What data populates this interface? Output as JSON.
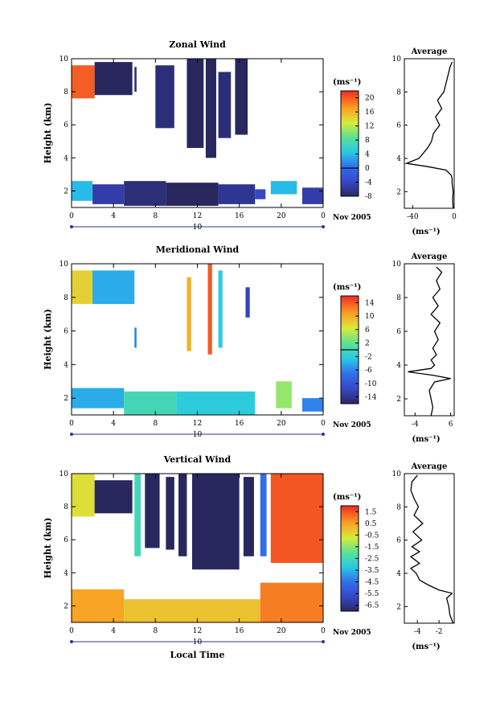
{
  "page": {
    "background": "#ffffff"
  },
  "chart_data": [
    {
      "type": "heatmap",
      "title": "Zonal Wind",
      "ylabel": "Height (km)",
      "xlabel": "",
      "xlim": [
        0,
        24
      ],
      "ylim": [
        1,
        10
      ],
      "x_ticks": [
        "0",
        "4",
        "8",
        "12",
        "16",
        "20",
        "0"
      ],
      "y_ticks": [
        "2",
        "4",
        "6",
        "8",
        "10"
      ],
      "date_marker": "10",
      "date_label": "Nov 2005",
      "colorbar": {
        "title": "(ms⁻¹)",
        "min": -8,
        "max": 22,
        "ticks": [
          "-8",
          "-4",
          "0",
          "4",
          "8",
          "12",
          "16",
          "20"
        ],
        "zero_line": 0
      },
      "regions": [
        {
          "x0": 0.0,
          "x1": 2.2,
          "y0": 7.6,
          "y1": 9.6,
          "value": 20
        },
        {
          "x0": 2.2,
          "x1": 5.8,
          "y0": 7.8,
          "y1": 9.8,
          "value": -8
        },
        {
          "x0": 6.0,
          "x1": 6.2,
          "y0": 8.0,
          "y1": 9.5,
          "value": -7
        },
        {
          "x0": 8.0,
          "x1": 9.8,
          "y0": 5.8,
          "y1": 9.6,
          "value": -7
        },
        {
          "x0": 11.0,
          "x1": 12.6,
          "y0": 4.6,
          "y1": 10.0,
          "value": -8
        },
        {
          "x0": 12.8,
          "x1": 13.8,
          "y0": 4.0,
          "y1": 10.0,
          "value": -8
        },
        {
          "x0": 14.0,
          "x1": 15.2,
          "y0": 5.2,
          "y1": 9.2,
          "value": -7
        },
        {
          "x0": 15.6,
          "x1": 16.8,
          "y0": 5.4,
          "y1": 10.0,
          "value": -8
        },
        {
          "x0": 0.0,
          "x1": 2.0,
          "y0": 1.4,
          "y1": 2.6,
          "value": 4
        },
        {
          "x0": 2.0,
          "x1": 5.0,
          "y0": 1.2,
          "y1": 2.4,
          "value": -5
        },
        {
          "x0": 5.0,
          "x1": 9.0,
          "y0": 1.1,
          "y1": 2.6,
          "value": -7
        },
        {
          "x0": 9.0,
          "x1": 14.0,
          "y0": 1.1,
          "y1": 2.5,
          "value": -8
        },
        {
          "x0": 14.0,
          "x1": 17.5,
          "y0": 1.2,
          "y1": 2.4,
          "value": -6
        },
        {
          "x0": 17.5,
          "x1": 18.5,
          "y0": 1.5,
          "y1": 2.1,
          "value": -4
        },
        {
          "x0": 19.0,
          "x1": 21.5,
          "y0": 1.8,
          "y1": 2.6,
          "value": 4
        },
        {
          "x0": 22.0,
          "x1": 24.0,
          "y0": 1.2,
          "y1": 2.2,
          "value": -5
        }
      ],
      "profile": {
        "title": "Average",
        "xlabel": "(ms⁻¹)",
        "x_ticks": [
          "-40",
          "0"
        ],
        "xlim": [
          -48,
          0
        ],
        "y_ticks": [
          "2",
          "4",
          "6",
          "8",
          "10"
        ],
        "height": [
          1.0,
          1.5,
          2.0,
          2.5,
          2.8,
          3.0,
          3.3,
          3.5,
          3.7,
          4.0,
          4.3,
          4.6,
          5.0,
          5.5,
          6.0,
          6.5,
          7.0,
          7.5,
          8.0,
          8.5,
          9.0,
          9.5,
          9.8
        ],
        "value": [
          -1,
          -1.5,
          -1,
          -2,
          -2,
          -3,
          -8,
          -25,
          -46,
          -34,
          -30,
          -26,
          -22,
          -20,
          -14,
          -18,
          -12,
          -16,
          -10,
          -8,
          -6,
          -4,
          -2
        ]
      }
    },
    {
      "type": "heatmap",
      "title": "Meridional Wind",
      "ylabel": "Height (km)",
      "xlabel": "",
      "xlim": [
        0,
        24
      ],
      "ylim": [
        1,
        10
      ],
      "x_ticks": [
        "0",
        "4",
        "8",
        "12",
        "16",
        "20",
        "0"
      ],
      "y_ticks": [
        "2",
        "4",
        "6",
        "8",
        "10"
      ],
      "date_marker": "10",
      "date_label": "Nov 2005",
      "colorbar": {
        "title": "(ms⁻¹)",
        "min": -16,
        "max": 16,
        "ticks": [
          "-14",
          "-10",
          "-6",
          "-2",
          "2",
          "6",
          "10",
          "14"
        ],
        "zero_line": 0
      },
      "regions": [
        {
          "x0": 0.0,
          "x1": 2.0,
          "y0": 7.6,
          "y1": 9.6,
          "value": 8
        },
        {
          "x0": 2.0,
          "x1": 6.0,
          "y0": 7.6,
          "y1": 9.6,
          "value": -4
        },
        {
          "x0": 6.0,
          "x1": 6.2,
          "y0": 5.0,
          "y1": 6.2,
          "value": -6
        },
        {
          "x0": 11.0,
          "x1": 11.4,
          "y0": 4.8,
          "y1": 9.2,
          "value": 10
        },
        {
          "x0": 13.0,
          "x1": 13.4,
          "y0": 4.6,
          "y1": 10.0,
          "value": 14
        },
        {
          "x0": 14.0,
          "x1": 14.4,
          "y0": 5.0,
          "y1": 9.6,
          "value": -2
        },
        {
          "x0": 16.6,
          "x1": 17.0,
          "y0": 6.8,
          "y1": 8.6,
          "value": -12
        },
        {
          "x0": 0.0,
          "x1": 5.0,
          "y0": 1.4,
          "y1": 2.6,
          "value": -4
        },
        {
          "x0": 5.0,
          "x1": 10.0,
          "y0": 1.0,
          "y1": 2.4,
          "value": 0
        },
        {
          "x0": 10.0,
          "x1": 17.5,
          "y0": 1.0,
          "y1": 2.4,
          "value": -2
        },
        {
          "x0": 19.5,
          "x1": 21.0,
          "y0": 1.4,
          "y1": 3.0,
          "value": 4
        },
        {
          "x0": 22.0,
          "x1": 24.0,
          "y0": 1.2,
          "y1": 2.0,
          "value": -6
        }
      ],
      "profile": {
        "title": "Average",
        "xlabel": "(ms⁻¹)",
        "x_ticks": [
          "-4",
          "6"
        ],
        "xlim": [
          -7,
          7
        ],
        "y_ticks": [
          "2",
          "4",
          "6",
          "8",
          "10"
        ],
        "height": [
          1.0,
          1.5,
          2.0,
          2.5,
          3.0,
          3.2,
          3.4,
          3.6,
          3.8,
          4.0,
          4.3,
          4.6,
          5.0,
          5.5,
          6.0,
          6.5,
          7.0,
          7.5,
          8.0,
          8.5,
          9.0,
          9.5,
          9.8
        ],
        "value": [
          0.5,
          1.0,
          0.5,
          0.0,
          1.5,
          6.0,
          1.0,
          -6.0,
          0.5,
          1.5,
          0.5,
          2.0,
          1.0,
          2.5,
          1.5,
          3.0,
          0.5,
          2.5,
          1.0,
          3.0,
          2.0,
          3.5,
          2.0
        ]
      }
    },
    {
      "type": "heatmap",
      "title": "Vertical Wind",
      "ylabel": "Height (km)",
      "xlabel": "Local Time",
      "xlim": [
        0,
        24
      ],
      "ylim": [
        1,
        10
      ],
      "x_ticks": [
        "0",
        "4",
        "8",
        "12",
        "16",
        "20",
        "0"
      ],
      "y_ticks": [
        "2",
        "4",
        "6",
        "8",
        "10"
      ],
      "date_marker": "10",
      "date_label": "Nov 2005",
      "colorbar": {
        "title": "(ms⁻¹)",
        "min": -7,
        "max": 2,
        "ticks": [
          "-6.5",
          "-5.5",
          "-4.5",
          "-3.5",
          "-2.5",
          "-1.5",
          "-0.5",
          "0.5",
          "1.5"
        ],
        "zero_line": null
      },
      "regions": [
        {
          "x0": 0.0,
          "x1": 2.2,
          "y0": 7.4,
          "y1": 10.0,
          "value": -0.5
        },
        {
          "x0": 2.2,
          "x1": 5.8,
          "y0": 7.6,
          "y1": 9.6,
          "value": -7.0
        },
        {
          "x0": 6.0,
          "x1": 6.6,
          "y0": 5.0,
          "y1": 10.0,
          "value": -2.5
        },
        {
          "x0": 7.0,
          "x1": 8.4,
          "y0": 5.5,
          "y1": 10.0,
          "value": -7.0
        },
        {
          "x0": 9.0,
          "x1": 9.8,
          "y0": 5.4,
          "y1": 9.8,
          "value": -7.0
        },
        {
          "x0": 10.2,
          "x1": 11.0,
          "y0": 5.0,
          "y1": 10.0,
          "value": -7.0
        },
        {
          "x0": 11.5,
          "x1": 16.0,
          "y0": 4.2,
          "y1": 10.0,
          "value": -7.0
        },
        {
          "x0": 16.4,
          "x1": 17.4,
          "y0": 5.0,
          "y1": 9.8,
          "value": -7.0
        },
        {
          "x0": 18.0,
          "x1": 18.6,
          "y0": 5.0,
          "y1": 10.0,
          "value": -4.5
        },
        {
          "x0": 19.0,
          "x1": 24.0,
          "y0": 4.6,
          "y1": 10.0,
          "value": 1.5
        },
        {
          "x0": 0.0,
          "x1": 5.0,
          "y0": 1.0,
          "y1": 3.0,
          "value": 0.5
        },
        {
          "x0": 5.0,
          "x1": 18.0,
          "y0": 1.0,
          "y1": 2.4,
          "value": 0.0
        },
        {
          "x0": 18.0,
          "x1": 24.0,
          "y0": 1.0,
          "y1": 3.4,
          "value": 1.0
        }
      ],
      "profile": {
        "title": "Average",
        "xlabel": "(ms⁻¹)",
        "x_ticks": [
          "-4",
          "-2"
        ],
        "xlim": [
          -5.2,
          -0.6
        ],
        "y_ticks": [
          "2",
          "4",
          "6",
          "8",
          "10"
        ],
        "height": [
          1.0,
          1.5,
          2.0,
          2.5,
          2.8,
          3.0,
          3.3,
          3.6,
          4.0,
          4.3,
          4.6,
          5.0,
          5.3,
          5.6,
          6.0,
          6.5,
          7.0,
          7.5,
          8.0,
          8.5,
          9.0,
          9.5,
          9.9
        ],
        "value": [
          -0.7,
          -1.0,
          -1.1,
          -1.3,
          -0.8,
          -2.0,
          -3.0,
          -3.8,
          -4.1,
          -4.6,
          -3.8,
          -4.6,
          -3.8,
          -4.5,
          -3.6,
          -4.4,
          -3.5,
          -4.3,
          -3.9,
          -4.3,
          -4.6,
          -4.5,
          -4.0
        ]
      }
    }
  ]
}
